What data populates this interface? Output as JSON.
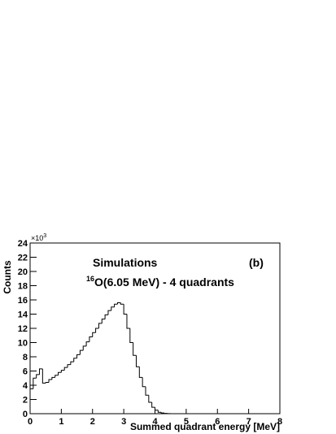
{
  "chart_data": {
    "type": "histogram",
    "title": "Simulations",
    "panel_label": "(b)",
    "subtitle": {
      "superscript": "16",
      "text": "O(6.05 MeV) - 4 quadrants"
    },
    "x_label": "Summed quadrant energy [MeV]",
    "y_label": "Counts",
    "y_multiplier": {
      "base": "×10",
      "exponent": "3"
    },
    "bins": [
      0,
      0.1,
      0.2,
      0.3,
      0.4,
      0.5,
      0.6,
      0.7,
      0.8,
      0.9,
      1.0,
      1.1,
      1.2,
      1.3,
      1.4,
      1.5,
      1.6,
      1.7,
      1.8,
      1.9,
      2.0,
      2.1,
      2.2,
      2.3,
      2.4,
      2.5,
      2.6,
      2.7,
      2.8,
      2.9,
      3.0,
      3.1,
      3.2,
      3.3,
      3.4,
      3.5,
      3.6,
      3.7,
      3.8,
      3.9,
      4.0,
      4.1,
      4.2,
      4.3,
      4.4,
      4.5,
      4.6
    ],
    "values": [
      3.5,
      5.0,
      5.5,
      6.3,
      4.3,
      4.4,
      4.8,
      5.1,
      5.4,
      5.8,
      6.1,
      6.5,
      6.9,
      7.3,
      7.8,
      8.3,
      8.9,
      9.5,
      10.1,
      10.8,
      11.4,
      12.0,
      12.7,
      13.3,
      13.9,
      14.5,
      15.0,
      15.4,
      15.6,
      15.4,
      14.0,
      12.0,
      10.0,
      8.2,
      6.6,
      5.1,
      3.8,
      2.6,
      1.6,
      0.9,
      0.5,
      0.2,
      0.1,
      0.05,
      0.02,
      0
    ],
    "color": "#000000",
    "xlim": [
      0,
      8
    ],
    "xticks": [
      0,
      1,
      2,
      3,
      4,
      5,
      6,
      7,
      8
    ],
    "ylim": [
      0,
      24
    ],
    "yticks": [
      0,
      2,
      4,
      6,
      8,
      10,
      12,
      14,
      16,
      18,
      20,
      22,
      24
    ]
  }
}
